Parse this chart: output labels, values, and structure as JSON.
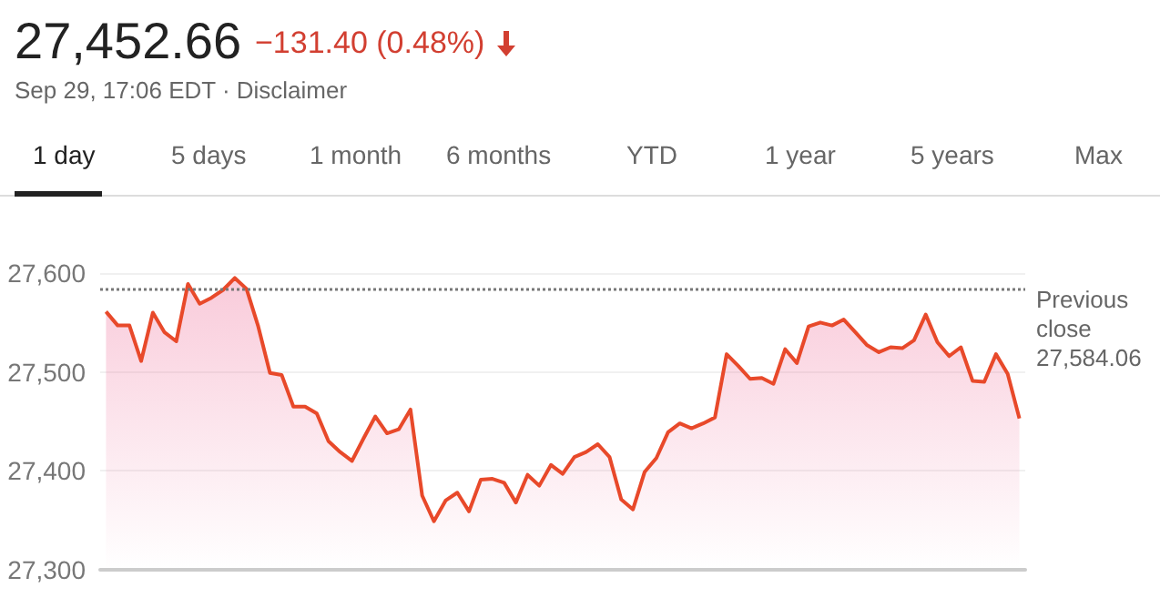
{
  "chart_data": {
    "type": "area",
    "title": "27,452.66",
    "subtitle": "−131.40 (0.48%)",
    "annotations": [
      "Sep 29, 17:06 EDT · Disclaimer",
      "1 day",
      "5 days",
      "1 month",
      "6 months",
      "YTD",
      "1 year",
      "5 years",
      "Max"
    ],
    "categories": [
      null,
      null,
      null,
      null,
      null,
      null,
      null,
      null,
      null,
      null,
      null,
      null,
      null,
      null,
      null,
      null,
      null,
      null,
      null,
      null,
      null,
      null,
      null,
      null,
      null,
      null,
      null,
      null,
      null,
      null,
      null,
      null,
      null,
      null,
      null,
      null,
      null,
      null,
      null,
      null,
      null,
      null,
      null,
      null,
      null,
      null,
      null,
      null,
      null,
      null,
      null,
      null,
      null,
      null,
      null,
      null,
      null,
      null,
      null,
      null,
      null,
      null,
      null,
      null,
      null,
      null,
      null,
      null,
      null,
      null,
      null,
      null,
      null,
      null,
      null,
      null,
      null,
      null,
      null
    ],
    "series": [
      {
        "color": "#e8492a",
        "values": [
          27561,
          27547,
          27547,
          27511,
          27560,
          27540,
          27531,
          27589,
          27569,
          27575,
          27583,
          27595,
          27584,
          27546,
          27499,
          27497,
          27465,
          27465,
          27458,
          27430,
          27419,
          27410,
          27433,
          27455,
          27438,
          27442,
          27462,
          27375,
          27349,
          27370,
          27378,
          27359,
          27391,
          27392,
          27388,
          27368,
          27396,
          27385,
          27406,
          27397,
          27414,
          27419,
          27427,
          27414,
          27371,
          27361,
          27399,
          27413,
          27439,
          27448,
          27443,
          27448,
          27454,
          27518,
          27506,
          27493,
          27494,
          27488,
          27523,
          27509,
          27546,
          27550,
          27547,
          27553,
          27540,
          27527,
          27520,
          27525,
          27524,
          27532,
          27558,
          27530,
          27516,
          27525,
          27491,
          27490,
          27518,
          27498,
          27453
        ]
      }
    ],
    "ylim": [
      27300,
      27600
    ],
    "yticks": [
      {
        "value": 27300,
        "label": "27,300"
      },
      {
        "value": 27400,
        "label": "27,400"
      },
      {
        "value": 27500,
        "label": "27,500"
      },
      {
        "value": 27600,
        "label": "27,600"
      }
    ],
    "grid": "y",
    "tick_labels": "y",
    "ref_lines": [
      {
        "axis": "y",
        "value": 27584.06,
        "label": "Previous close 27,584.06",
        "color": "#777777",
        "line_style": "dotted"
      }
    ]
  }
}
